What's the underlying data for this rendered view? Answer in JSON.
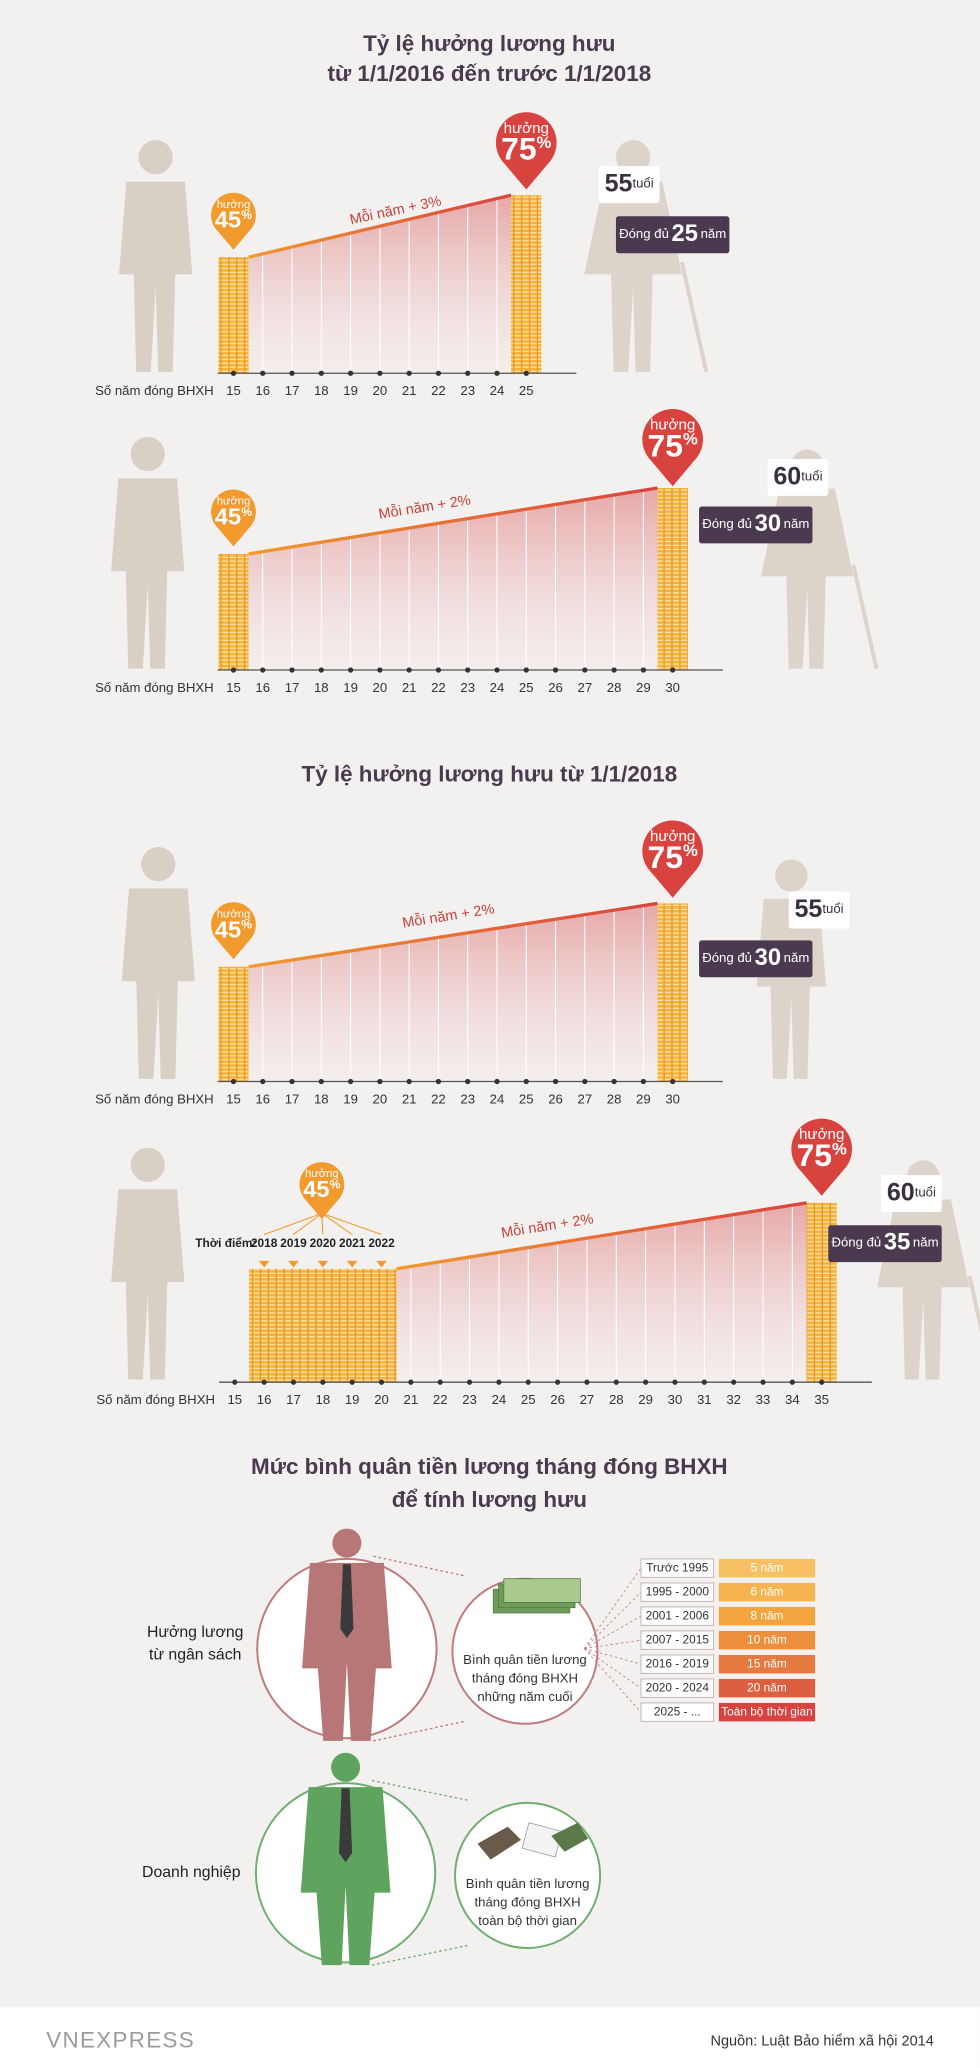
{
  "sections": [
    {
      "title": [
        "Tỷ lệ hưởng lương hưu",
        "từ 1/1/2016 đến trước 1/1/2018"
      ],
      "panels": [
        {
          "start_pin": {
            "label": "hưởng",
            "rate": "45",
            "unit": "%"
          },
          "end_pin": {
            "label": "hưởng",
            "rate": "75",
            "unit": "%"
          },
          "slope": "Mỗi năm + 3%",
          "age": {
            "value": "55",
            "unit": "tuổi"
          },
          "paid": {
            "prefix": "Đóng đủ",
            "value": "25",
            "unit": "năm"
          },
          "axis_label": "Số năm đóng BHXH",
          "ticks": [
            15,
            16,
            17,
            18,
            19,
            20,
            21,
            22,
            23,
            24,
            25
          ]
        },
        {
          "start_pin": {
            "label": "hưởng",
            "rate": "45",
            "unit": "%"
          },
          "end_pin": {
            "label": "hưởng",
            "rate": "75",
            "unit": "%"
          },
          "slope": "Mỗi năm + 2%",
          "age": {
            "value": "60",
            "unit": "tuổi"
          },
          "paid": {
            "prefix": "Đóng đủ",
            "value": "30",
            "unit": "năm"
          },
          "axis_label": "Số năm đóng BHXH",
          "ticks": [
            15,
            16,
            17,
            18,
            19,
            20,
            21,
            22,
            23,
            24,
            25,
            26,
            27,
            28,
            29,
            30
          ]
        }
      ]
    },
    {
      "title": [
        "Tỷ lệ hưởng lương hưu từ 1/1/2018"
      ],
      "panels": [
        {
          "start_pin": {
            "label": "hưởng",
            "rate": "45",
            "unit": "%"
          },
          "end_pin": {
            "label": "hưởng",
            "rate": "75",
            "unit": "%"
          },
          "slope": "Mỗi năm + 2%",
          "age": {
            "value": "55",
            "unit": "tuổi"
          },
          "paid": {
            "prefix": "Đóng đủ",
            "value": "30",
            "unit": "năm"
          },
          "axis_label": "Số năm đóng BHXH",
          "ticks": [
            15,
            16,
            17,
            18,
            19,
            20,
            21,
            22,
            23,
            24,
            25,
            26,
            27,
            28,
            29,
            30
          ]
        },
        {
          "start_pin": {
            "label": "hưởng",
            "rate": "45",
            "unit": "%"
          },
          "end_pin": {
            "label": "hưởng",
            "rate": "75",
            "unit": "%"
          },
          "slope": "Mỗi năm + 2%",
          "age": {
            "value": "60",
            "unit": "tuổi"
          },
          "paid": {
            "prefix": "Đóng đủ",
            "value": "35",
            "unit": "năm"
          },
          "axis_label": "Số năm đóng BHXH",
          "ticks": [
            15,
            16,
            17,
            18,
            19,
            20,
            21,
            22,
            23,
            24,
            25,
            26,
            27,
            28,
            29,
            30,
            31,
            32,
            33,
            34,
            35
          ],
          "period_label": "Thời điểm:",
          "periods": [
            2018,
            2019,
            2020,
            2021,
            2022
          ]
        }
      ]
    }
  ],
  "average": {
    "title": [
      "Mức bình quân tiền lương tháng đóng BHXH",
      "để tính lương hưu"
    ],
    "budget": {
      "label": [
        "Hưởng lương",
        "từ ngân sách"
      ],
      "note": [
        "Bình quân tiền lương",
        "tháng đóng BHXH",
        "những năm cuối"
      ],
      "rows": [
        {
          "period": "Trước 1995",
          "duration": "5 năm"
        },
        {
          "period": "1995 - 2000",
          "duration": "6 năm"
        },
        {
          "period": "2001 - 2006",
          "duration": "8 năm"
        },
        {
          "period": "2007 - 2015",
          "duration": "10 năm"
        },
        {
          "period": "2016 - 2019",
          "duration": "15 năm"
        },
        {
          "period": "2020 - 2024",
          "duration": "20 năm"
        },
        {
          "period": "2025 - ...",
          "duration": "Toàn bộ thời gian"
        }
      ]
    },
    "enterprise": {
      "label": "Doanh nghiệp",
      "note": [
        "Bình quân tiền lương",
        "tháng đóng BHXH",
        "toàn bộ thời gian"
      ]
    }
  },
  "footer": {
    "logo": "VNEXPRESS",
    "source": "Nguồn: Luật Bảo hiểm xã hội 2014"
  }
}
